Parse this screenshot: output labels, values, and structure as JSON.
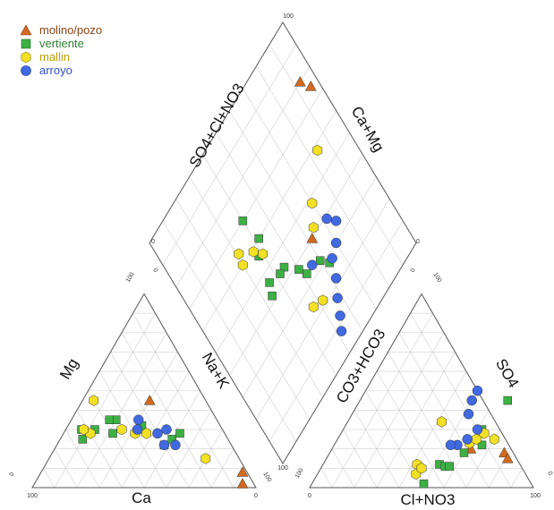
{
  "chart_data": {
    "type": "scatter",
    "subtype": "piper-diagram",
    "legend": {
      "placement": "top-left",
      "entries": [
        {
          "name": "molino/pozo",
          "marker": "triangle",
          "color": "#D2691E"
        },
        {
          "name": "vertiente",
          "marker": "square",
          "color": "#3CB043"
        },
        {
          "name": "mallin",
          "marker": "hexagon",
          "color": "#F2E024"
        },
        {
          "name": "arroyo",
          "marker": "circle",
          "color": "#4169E1"
        }
      ]
    },
    "axes": {
      "cation_left": "Mg",
      "cation_right": "Na+K",
      "cation_bottom": "Ca",
      "anion_left": "CO3+HCO3",
      "anion_right": "SO4",
      "anion_bottom": "Cl+NO3",
      "diamond_left": "SO4+Cl+NO3",
      "diamond_right": "Ca+Mg"
    },
    "ticks": {
      "cation_bottom_left": "100",
      "cation_bottom_right": "0",
      "cation_left_bottom": "0",
      "cation_left_top": "100",
      "cation_right_top": "0",
      "cation_right_bottom": "100",
      "anion_bottom_left": "0",
      "anion_bottom_right": "100",
      "anion_left_bottom": "100",
      "anion_left_top": "0",
      "anion_right_top": "100",
      "anion_right_bottom": "0",
      "diamond_top": "100",
      "diamond_bottom": "100",
      "diamond_left": "0",
      "diamond_right": "0"
    },
    "grid": true,
    "range": [
      0,
      100
    ],
    "series": [
      {
        "name": "molino/pozo",
        "cations": [
          {
            "Ca": 25,
            "Mg": 45
          },
          {
            "Ca": 2,
            "Mg": 8
          },
          {
            "Ca": 5,
            "Mg": 2
          }
        ],
        "anions": [
          {
            "Cl": 62,
            "SO4": 20
          },
          {
            "Cl": 78,
            "SO4": 18
          },
          {
            "Cl": 81,
            "SO4": 15
          }
        ],
        "diamond": [
          {
            "SO4Cl": 62,
            "CaMg": 60
          },
          {
            "SO4Cl": 96,
            "CaMg": 25
          },
          {
            "SO4Cl": 93,
            "CaMg": 20
          }
        ]
      },
      {
        "name": "vertiente",
        "cations": [
          {
            "Ca": 65,
            "Mg": 25
          },
          {
            "Ca": 63,
            "Mg": 30
          },
          {
            "Ca": 57,
            "Mg": 30
          },
          {
            "Ca": 50,
            "Mg": 28
          },
          {
            "Ca": 45,
            "Mg": 35
          },
          {
            "Ca": 48,
            "Mg": 35
          },
          {
            "Ca": 37,
            "Mg": 30
          },
          {
            "Ca": 35,
            "Mg": 32
          },
          {
            "Ca": 30,
            "Mg": 22
          },
          {
            "Ca": 25,
            "Mg": 25
          },
          {
            "Ca": 20,
            "Mg": 28
          }
        ],
        "anions": [
          {
            "Cl": 50,
            "SO4": 2
          },
          {
            "Cl": 52,
            "SO4": 12
          },
          {
            "Cl": 55,
            "SO4": 11
          },
          {
            "Cl": 57,
            "SO4": 11
          },
          {
            "Cl": 60,
            "SO4": 18
          },
          {
            "Cl": 62,
            "SO4": 30
          },
          {
            "Cl": 66,
            "SO4": 45
          },
          {
            "Cl": 66,
            "SO4": 22
          }
        ],
        "diamond": [
          {
            "SO4Cl": 63,
            "CaMg": 72
          },
          {
            "SO4Cl": 60,
            "CaMg": 68
          },
          {
            "SO4Cl": 52,
            "CaMg": 66
          },
          {
            "SO4Cl": 50,
            "CaMg": 62
          },
          {
            "SO4Cl": 45,
            "CaMg": 56
          },
          {
            "SO4Cl": 42,
            "CaMg": 56
          },
          {
            "SO4Cl": 34,
            "CaMg": 58
          },
          {
            "SO4Cl": 36,
            "CaMg": 54
          },
          {
            "SO4Cl": 38,
            "CaMg": 44
          },
          {
            "SO4Cl": 42,
            "CaMg": 40
          },
          {
            "SO4Cl": 40,
            "CaMg": 30
          }
        ]
      },
      {
        "name": "mallin",
        "cations": [
          {
            "Ca": 50,
            "Mg": 45
          },
          {
            "Ca": 35,
            "Mg": 28
          },
          {
            "Ca": 60,
            "Mg": 28
          },
          {
            "Ca": 62,
            "Mg": 30
          },
          {
            "Ca": 45,
            "Mg": 30
          },
          {
            "Ca": 15,
            "Mg": 15
          },
          {
            "Ca": 40,
            "Mg": 28
          }
        ],
        "anions": [
          {
            "Cl": 42,
            "SO4": 34
          },
          {
            "Cl": 60,
            "SO4": 23
          },
          {
            "Cl": 62,
            "SO4": 25
          },
          {
            "Cl": 64,
            "SO4": 28
          },
          {
            "Cl": 70,
            "SO4": 25
          },
          {
            "Cl": 42,
            "SO4": 12
          },
          {
            "Cl": 44,
            "SO4": 7
          },
          {
            "Cl": 45,
            "SO4": 10
          }
        ],
        "diamond": [
          {
            "SO4Cl": 47,
            "CaMg": 76
          },
          {
            "SO4Cl": 52,
            "CaMg": 78
          },
          {
            "SO4Cl": 65,
            "CaMg": 58
          },
          {
            "SO4Cl": 70,
            "CaMg": 52
          },
          {
            "SO4Cl": 84,
            "CaMg": 42
          },
          {
            "SO4Cl": 40,
            "CaMg": 45
          },
          {
            "SO4Cl": 37,
            "CaMg": 41
          },
          {
            "SO4Cl": 31,
            "CaMg": 36
          },
          {
            "SO4Cl": 30,
            "CaMg": 40
          }
        ]
      },
      {
        "name": "arroyo",
        "cations": [
          {
            "Ca": 38,
            "Mg": 30
          },
          {
            "Ca": 35,
            "Mg": 35
          },
          {
            "Ca": 30,
            "Mg": 28
          },
          {
            "Ca": 25,
            "Mg": 30
          },
          {
            "Ca": 30,
            "Mg": 22
          },
          {
            "Ca": 25,
            "Mg": 22
          }
        ],
        "anions": [
          {
            "Cl": 50,
            "SO4": 50
          },
          {
            "Cl": 50,
            "SO4": 45
          },
          {
            "Cl": 52,
            "SO4": 38
          },
          {
            "Cl": 58,
            "SO4": 25
          },
          {
            "Cl": 55,
            "SO4": 22
          },
          {
            "Cl": 60,
            "SO4": 30
          },
          {
            "Cl": 52,
            "SO4": 22
          }
        ],
        "diamond": [
          {
            "SO4Cl": 52,
            "CaMg": 92
          },
          {
            "SO4Cl": 55,
            "CaMg": 88
          },
          {
            "SO4Cl": 58,
            "CaMg": 83
          },
          {
            "SO4Cl": 62,
            "CaMg": 78
          },
          {
            "SO4Cl": 65,
            "CaMg": 72
          },
          {
            "SO4Cl": 70,
            "CaMg": 70
          },
          {
            "SO4Cl": 75,
            "CaMg": 65
          },
          {
            "SO4Cl": 72,
            "CaMg": 61
          },
          {
            "SO4Cl": 56,
            "CaMg": 66
          }
        ]
      }
    ]
  }
}
